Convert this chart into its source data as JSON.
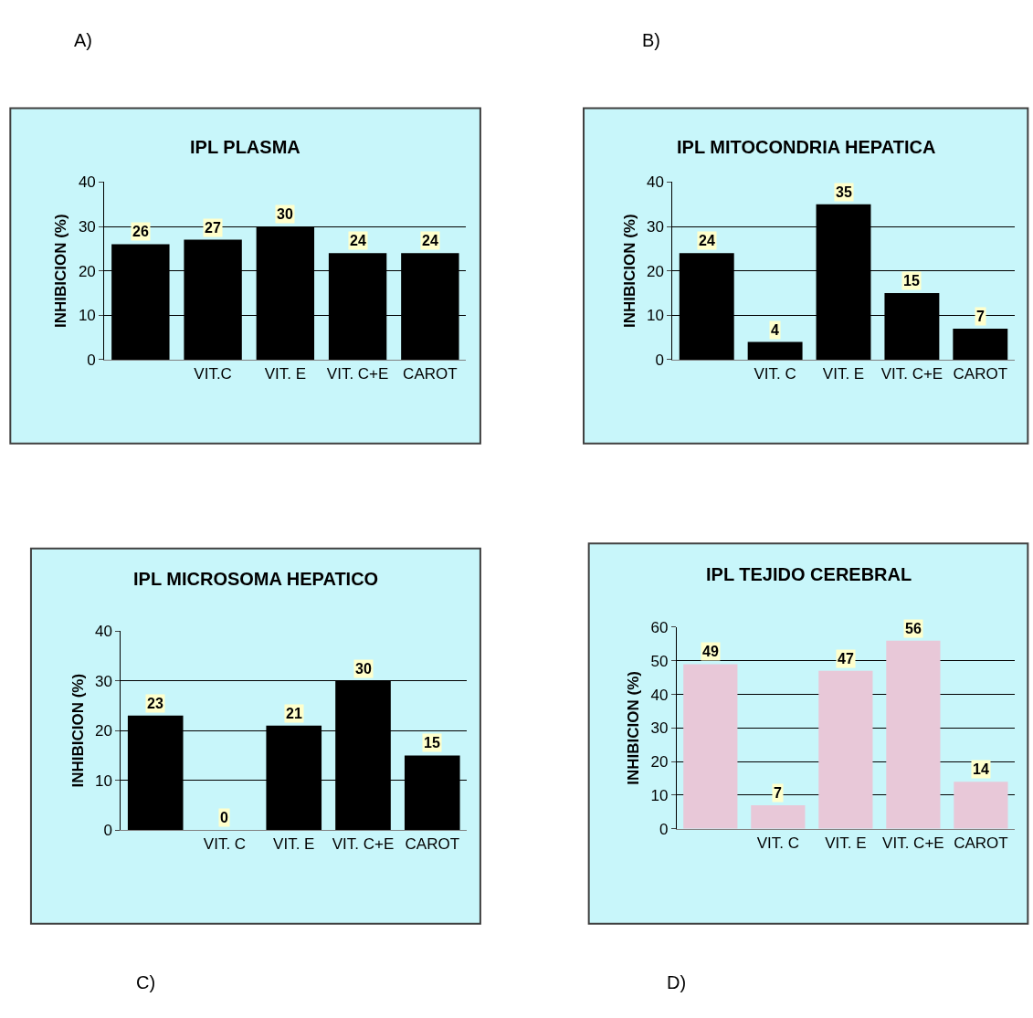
{
  "chart_data": [
    {
      "type": "bar",
      "title": "IPL PLASMA",
      "ylabel": "INHIBICION (%)",
      "categories": [
        null,
        "VIT.C",
        "VIT. E",
        "VIT. C+E",
        "CAROT"
      ],
      "values": [
        26,
        27,
        30,
        24,
        24
      ],
      "color": "#000000",
      "ylim": [
        0,
        40
      ],
      "yticks": [
        0,
        10,
        20,
        30,
        40
      ],
      "grid": "y",
      "data_labels": true,
      "annotations": [
        "A)"
      ]
    },
    {
      "type": "bar",
      "title": "IPL MITOCONDRIA HEPATICA",
      "ylabel": "INHIBICION (%)",
      "categories": [
        null,
        "VIT. C",
        "VIT. E",
        "VIT. C+E",
        "CAROT"
      ],
      "values": [
        24,
        4,
        35,
        15,
        7
      ],
      "color": "#000000",
      "ylim": [
        0,
        40
      ],
      "yticks": [
        0,
        10,
        20,
        30,
        40
      ],
      "grid": "y",
      "data_labels": true,
      "annotations": [
        "B)"
      ]
    },
    {
      "type": "bar",
      "title": "IPL MICROSOMA HEPATICO",
      "ylabel": "INHIBICION (%)",
      "categories": [
        null,
        "VIT. C",
        "VIT. E",
        "VIT. C+E",
        "CAROT"
      ],
      "values": [
        23,
        0,
        21,
        30,
        15
      ],
      "color": "#000000",
      "ylim": [
        0,
        40
      ],
      "yticks": [
        0,
        10,
        20,
        30,
        40
      ],
      "grid": "y",
      "data_labels": true,
      "annotations": [
        "C)"
      ]
    },
    {
      "type": "bar",
      "title": "IPL TEJIDO CEREBRAL",
      "ylabel": "INHIBICION (%)",
      "categories": [
        null,
        "VIT. C",
        "VIT. E",
        "VIT. C+E",
        "CAROT"
      ],
      "values": [
        49,
        7,
        47,
        56,
        14
      ],
      "color": "#e8c8d8",
      "ylim": [
        0,
        60
      ],
      "yticks": [
        0,
        10,
        20,
        30,
        40,
        50,
        60
      ],
      "grid": "y",
      "data_labels": true,
      "annotations": [
        "D)"
      ]
    }
  ]
}
